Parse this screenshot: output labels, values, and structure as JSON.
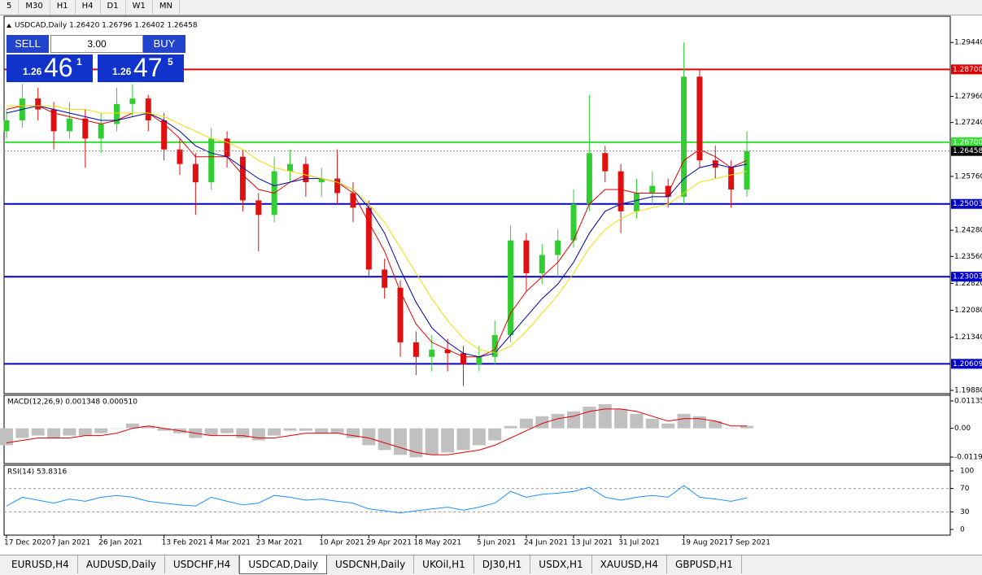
{
  "toolbar": {
    "buttons": [
      "5",
      "M30",
      "H1",
      "H4",
      "D1",
      "W1",
      "MN"
    ]
  },
  "trade_panel": {
    "sell": "SELL",
    "buy": "BUY",
    "lots": "3.00",
    "sell_big": "1.26",
    "sell_pips": "46",
    "sell_frac": "1",
    "buy_big": "1.26",
    "buy_pips": "47",
    "buy_frac": "5"
  },
  "chart_data": {
    "type": "candlestick",
    "title": "USDCAD,Daily  1.26420 1.26796 1.26402 1.26458",
    "categories": [
      "17 Dec 2020",
      null,
      null,
      "7 Jan 2021",
      null,
      null,
      "26 Jan 2021",
      null,
      null,
      null,
      "13 Feb 2021",
      null,
      null,
      "4 Mar 2021",
      null,
      null,
      "23 Mar 2021",
      null,
      null,
      null,
      "10 Apr 2021",
      null,
      null,
      "29 Apr 2021",
      null,
      null,
      "18 May 2021",
      null,
      null,
      null,
      "5 Jun 2021",
      null,
      null,
      "24 Jun 2021",
      null,
      null,
      "13 Jul 2021",
      null,
      null,
      "31 Jul 2021",
      null,
      null,
      null,
      "19 Aug 2021",
      null,
      null,
      "7 Sep 2021",
      null
    ],
    "ohlc": [
      [
        1.27,
        1.276,
        1.268,
        1.273
      ],
      [
        1.273,
        1.283,
        1.271,
        1.279
      ],
      [
        1.279,
        1.282,
        1.273,
        1.276
      ],
      [
        1.276,
        1.278,
        1.265,
        1.27
      ],
      [
        1.27,
        1.278,
        1.268,
        1.2735
      ],
      [
        1.2735,
        1.276,
        1.26,
        1.268
      ],
      [
        1.268,
        1.275,
        1.264,
        1.272
      ],
      [
        1.272,
        1.282,
        1.27,
        1.2775
      ],
      [
        1.2775,
        1.283,
        1.274,
        1.279
      ],
      [
        1.279,
        1.28,
        1.27,
        1.273
      ],
      [
        1.273,
        1.275,
        1.262,
        1.265
      ],
      [
        1.265,
        1.268,
        1.258,
        1.261
      ],
      [
        1.261,
        1.264,
        1.247,
        1.256
      ],
      [
        1.256,
        1.271,
        1.254,
        1.268
      ],
      [
        1.268,
        1.27,
        1.26,
        1.263
      ],
      [
        1.263,
        1.265,
        1.248,
        1.251
      ],
      [
        1.251,
        1.253,
        1.237,
        1.247
      ],
      [
        1.247,
        1.263,
        1.245,
        1.259
      ],
      [
        1.259,
        1.265,
        1.256,
        1.261
      ],
      [
        1.261,
        1.263,
        1.252,
        1.256
      ],
      [
        1.256,
        1.26,
        1.252,
        1.257
      ],
      [
        1.257,
        1.265,
        1.25,
        1.253
      ],
      [
        1.253,
        1.256,
        1.245,
        1.249
      ],
      [
        1.249,
        1.251,
        1.23,
        1.232
      ],
      [
        1.232,
        1.235,
        1.224,
        1.227
      ],
      [
        1.227,
        1.229,
        1.208,
        1.212
      ],
      [
        1.212,
        1.215,
        1.203,
        1.208
      ],
      [
        1.208,
        1.214,
        1.204,
        1.21
      ],
      [
        1.21,
        1.213,
        1.204,
        1.209
      ],
      [
        1.209,
        1.211,
        1.2,
        1.206
      ],
      [
        1.206,
        1.211,
        1.204,
        1.208
      ],
      [
        1.208,
        1.218,
        1.206,
        1.214
      ],
      [
        1.214,
        1.244,
        1.212,
        1.24
      ],
      [
        1.24,
        1.242,
        1.226,
        1.231
      ],
      [
        1.231,
        1.239,
        1.228,
        1.236
      ],
      [
        1.236,
        1.243,
        1.23,
        1.24
      ],
      [
        1.24,
        1.254,
        1.238,
        1.25
      ],
      [
        1.25,
        1.28,
        1.248,
        1.264
      ],
      [
        1.264,
        1.266,
        1.256,
        1.259
      ],
      [
        1.259,
        1.261,
        1.242,
        1.248
      ],
      [
        1.248,
        1.257,
        1.246,
        1.253
      ],
      [
        1.253,
        1.259,
        1.25,
        1.255
      ],
      [
        1.255,
        1.257,
        1.249,
        1.252
      ],
      [
        1.252,
        1.2944,
        1.25,
        1.285
      ],
      [
        1.285,
        1.287,
        1.26,
        1.262
      ],
      [
        1.262,
        1.266,
        1.257,
        1.26
      ],
      [
        1.26,
        1.262,
        1.249,
        1.254
      ],
      [
        1.254,
        1.27,
        1.252,
        1.2646
      ]
    ],
    "up_color": "#32cd32",
    "down_color": "#e01010",
    "ma": [
      {
        "color": "#e00000",
        "values": [
          1.276,
          1.277,
          1.277,
          1.275,
          1.274,
          1.273,
          1.272,
          1.273,
          1.275,
          1.275,
          1.272,
          1.268,
          1.263,
          1.263,
          1.263,
          1.258,
          1.254,
          1.253,
          1.256,
          1.258,
          1.257,
          1.256,
          1.253,
          1.245,
          1.237,
          1.226,
          1.217,
          1.212,
          1.21,
          1.208,
          1.208,
          1.21,
          1.22,
          1.226,
          1.23,
          1.234,
          1.24,
          1.25,
          1.254,
          1.254,
          1.253,
          1.253,
          1.253,
          1.262,
          1.265,
          1.263,
          1.26,
          1.262
        ]
      },
      {
        "color": "#0000b0",
        "values": [
          1.275,
          1.276,
          1.277,
          1.276,
          1.275,
          1.274,
          1.273,
          1.273,
          1.274,
          1.275,
          1.273,
          1.27,
          1.266,
          1.264,
          1.263,
          1.26,
          1.257,
          1.255,
          1.256,
          1.257,
          1.257,
          1.256,
          1.254,
          1.249,
          1.242,
          1.232,
          1.223,
          1.216,
          1.212,
          1.209,
          1.208,
          1.209,
          1.214,
          1.219,
          1.224,
          1.228,
          1.234,
          1.242,
          1.248,
          1.25,
          1.251,
          1.252,
          1.252,
          1.257,
          1.26,
          1.261,
          1.26,
          1.261
        ]
      },
      {
        "color": "#f0e000",
        "values": [
          1.277,
          1.277,
          1.277,
          1.277,
          1.276,
          1.276,
          1.275,
          1.275,
          1.275,
          1.275,
          1.274,
          1.272,
          1.27,
          1.268,
          1.267,
          1.265,
          1.262,
          1.26,
          1.259,
          1.258,
          1.257,
          1.256,
          1.254,
          1.25,
          1.245,
          1.238,
          1.231,
          1.224,
          1.218,
          1.213,
          1.21,
          1.209,
          1.211,
          1.215,
          1.22,
          1.225,
          1.231,
          1.238,
          1.243,
          1.246,
          1.248,
          1.249,
          1.25,
          1.253,
          1.256,
          1.257,
          1.258,
          1.259
        ]
      }
    ],
    "ylim": [
      1.1979,
      1.3016
    ],
    "yticks": [
      {
        "value": 1.2944,
        "label": "1.29440"
      },
      {
        "value": 1.2796,
        "label": "1.27960"
      },
      {
        "value": 1.2724,
        "label": "1.27240"
      },
      {
        "value": 1.2576,
        "label": "1.25760"
      },
      {
        "value": 1.2428,
        "label": "1.24280"
      },
      {
        "value": 1.2356,
        "label": "1.23560"
      },
      {
        "value": 1.2282,
        "label": "1.22820"
      },
      {
        "value": 1.2208,
        "label": "1.22080"
      },
      {
        "value": 1.2134,
        "label": "1.21340"
      },
      {
        "value": 1.1988,
        "label": "1.19880"
      }
    ],
    "levels": [
      {
        "value": 1.287,
        "label": "1.28700",
        "color": "#e00000"
      },
      {
        "value": 1.267,
        "label": "1.26700",
        "color": "#33e033"
      },
      {
        "value": 1.25003,
        "label": "1.25003",
        "color": "#0000c8"
      },
      {
        "value": 1.23003,
        "label": "1.23003",
        "color": "#0000c8"
      },
      {
        "value": 1.20609,
        "label": "1.20609",
        "color": "#0000c8"
      }
    ],
    "price": {
      "value": 1.26458,
      "label": "1.26458"
    },
    "macd": {
      "title": "MACD(12,26,9) 0.001348 0.000510",
      "ylim": [
        -0.0146,
        0.0137
      ],
      "yticks": [
        {
          "value": 0.01135,
          "label": "0.01135"
        },
        {
          "value": 0,
          "label": "0.00"
        },
        {
          "value": -0.0119,
          "label": "-0.01190"
        }
      ],
      "histogram": [
        -0.007,
        -0.004,
        -0.003,
        -0.004,
        -0.003,
        -0.003,
        -0.002,
        0.0,
        0.002,
        0.001,
        -0.001,
        -0.002,
        -0.004,
        -0.003,
        -0.002,
        -0.004,
        -0.005,
        -0.003,
        -0.001,
        -0.001,
        -0.002,
        -0.002,
        -0.004,
        -0.007,
        -0.009,
        -0.011,
        -0.012,
        -0.011,
        -0.01,
        -0.009,
        -0.007,
        -0.005,
        0.001,
        0.004,
        0.005,
        0.006,
        0.007,
        0.009,
        0.01,
        0.008,
        0.006,
        0.004,
        0.002,
        0.006,
        0.005,
        0.003,
        0.0,
        0.001
      ],
      "signal": [
        -0.006,
        -0.005,
        -0.004,
        -0.004,
        -0.004,
        -0.003,
        -0.003,
        -0.002,
        0.0,
        0.001,
        0.0,
        -0.001,
        -0.002,
        -0.003,
        -0.003,
        -0.003,
        -0.004,
        -0.004,
        -0.003,
        -0.002,
        -0.002,
        -0.002,
        -0.003,
        -0.004,
        -0.006,
        -0.008,
        -0.01,
        -0.011,
        -0.011,
        -0.01,
        -0.009,
        -0.007,
        -0.004,
        -0.001,
        0.002,
        0.004,
        0.005,
        0.007,
        0.008,
        0.008,
        0.007,
        0.005,
        0.003,
        0.004,
        0.004,
        0.003,
        0.001,
        0.001
      ],
      "hist_color": "#c0c0c0",
      "signal_color": "#e00000"
    },
    "rsi": {
      "title": "RSI(14) 53.8316",
      "ylim": [
        -9.7,
        109.7
      ],
      "yticks": [
        100,
        70,
        30,
        0
      ],
      "levels": [
        70,
        30
      ],
      "color": "#1e90ff",
      "values": [
        40,
        55,
        50,
        45,
        52,
        48,
        55,
        58,
        55,
        48,
        45,
        42,
        40,
        55,
        48,
        42,
        45,
        58,
        55,
        50,
        52,
        48,
        45,
        35,
        32,
        28,
        32,
        35,
        38,
        33,
        38,
        45,
        65,
        55,
        60,
        62,
        65,
        72,
        55,
        50,
        55,
        58,
        55,
        75,
        55,
        52,
        48,
        54
      ]
    }
  },
  "tabs": {
    "items": [
      "EURUSD,H4",
      "AUDUSD,Daily",
      "USDCHF,H4",
      "USDCAD,Daily",
      "USDCNH,Daily",
      "UKOil,H1",
      "DJ30,H1",
      "USDX,H1",
      "XAUUSD,H4",
      "GBPUSD,H1"
    ],
    "active": "USDCAD,Daily"
  }
}
